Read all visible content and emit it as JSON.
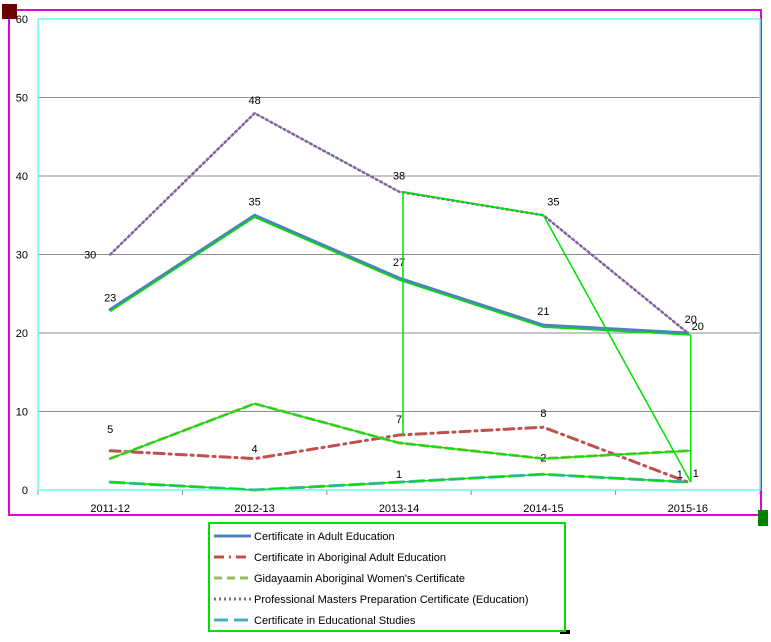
{
  "chart_data": {
    "type": "line",
    "categories": [
      "2011-12",
      "2012-13",
      "2013-14",
      "2014-15",
      "2015-16"
    ],
    "ylim": [
      0,
      60
    ],
    "yticks": [
      "0",
      "10",
      "20",
      "30",
      "40",
      "50",
      "60"
    ],
    "grid": true,
    "legend_position": "bottom",
    "series": [
      {
        "name": "Certificate in Adult Education",
        "values": [
          23,
          35,
          27,
          21,
          20
        ],
        "labels": [
          "23",
          "35",
          "27",
          "21",
          "20"
        ],
        "color": "#4F81BD",
        "dash": "solid"
      },
      {
        "name": "Certificate in Aboriginal Adult Education",
        "values": [
          5,
          4,
          7,
          8,
          1
        ],
        "labels": [
          "5",
          "4",
          "7",
          "8",
          "1"
        ],
        "color": "#C0504D",
        "dash": "dashdot"
      },
      {
        "name": "Gidayaamin Aboriginal Women's Certificate",
        "values": [
          4,
          11,
          6,
          4,
          5
        ],
        "labels": [],
        "color": "#9BBB59",
        "dash": "dash"
      },
      {
        "name": "Professional Masters Preparation Certificate (Education)",
        "values": [
          30,
          48,
          38,
          35,
          20
        ],
        "labels": [
          "30",
          "48",
          "38",
          "35",
          "20"
        ],
        "color": "#8064A2",
        "dash": "dot"
      },
      {
        "name": "Certificate in Educational Studies",
        "values": [
          1,
          0,
          1,
          2,
          1
        ],
        "labels": [
          "",
          "",
          "1",
          "2",
          "1"
        ],
        "color": "#4BACC6",
        "dash": "longdash"
      }
    ]
  },
  "overlay_colors": {
    "selection_green": "#00E000",
    "plot_border": "#66FFEE",
    "outer_border": "#E000E0",
    "handle_dark": "#6B0000",
    "handle_green": "#008000"
  }
}
